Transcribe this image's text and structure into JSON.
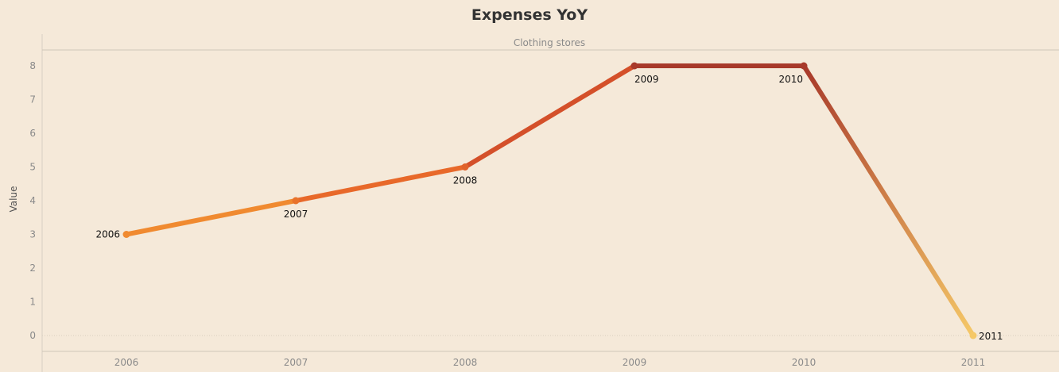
{
  "chart_data": {
    "type": "line",
    "title": "Expenses YoY",
    "panel_label": "Clothing stores",
    "ylabel": "Value",
    "xlabel": "",
    "categories": [
      "2006",
      "2007",
      "2008",
      "2009",
      "2010",
      "2011"
    ],
    "series": [
      {
        "values": [
          3,
          4,
          5,
          8,
          8,
          0
        ]
      }
    ],
    "ylim": [
      0,
      8
    ],
    "yticks": [
      0,
      1,
      2,
      3,
      4,
      5,
      6,
      7,
      8
    ],
    "data_labels": [
      "2006",
      "2007",
      "2008",
      "2009",
      "2010",
      "2011"
    ],
    "grid": false,
    "legend": "none",
    "colors": {
      "background": "#f5e9d9",
      "segments": [
        "#f08a30",
        "#e8692a",
        "#d4502a",
        "#a8392a",
        "#a8392a"
      ],
      "points": [
        "#f08a30",
        "#e8732c",
        "#e0622a",
        "#a8392a",
        "#a8392a",
        "#f5c868"
      ]
    }
  }
}
